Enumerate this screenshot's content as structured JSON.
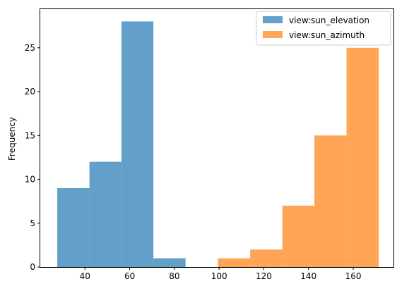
{
  "chart_data": {
    "type": "histogram",
    "ylabel": "Frequency",
    "xlim": [
      20,
      178
    ],
    "ylim": [
      0,
      29.4
    ],
    "x_ticks": [
      40,
      60,
      80,
      100,
      120,
      140,
      160
    ],
    "y_ticks": [
      0,
      5,
      10,
      15,
      20,
      25
    ],
    "legend_position": "top-right",
    "series": [
      {
        "name": "view:sun_elevation",
        "color": "#1f77b4",
        "bins": [
          {
            "start": 27.6,
            "end": 42.0,
            "count": 9
          },
          {
            "start": 42.0,
            "end": 56.3,
            "count": 12
          },
          {
            "start": 56.3,
            "end": 70.6,
            "count": 28
          },
          {
            "start": 70.6,
            "end": 85.0,
            "count": 1
          }
        ]
      },
      {
        "name": "view:sun_azimuth",
        "color": "#ff7f0e",
        "bins": [
          {
            "start": 99.5,
            "end": 113.9,
            "count": 1
          },
          {
            "start": 113.9,
            "end": 128.3,
            "count": 2
          },
          {
            "start": 128.3,
            "end": 142.6,
            "count": 7
          },
          {
            "start": 142.6,
            "end": 157.0,
            "count": 15
          },
          {
            "start": 157.0,
            "end": 171.4,
            "count": 25
          }
        ]
      }
    ]
  }
}
